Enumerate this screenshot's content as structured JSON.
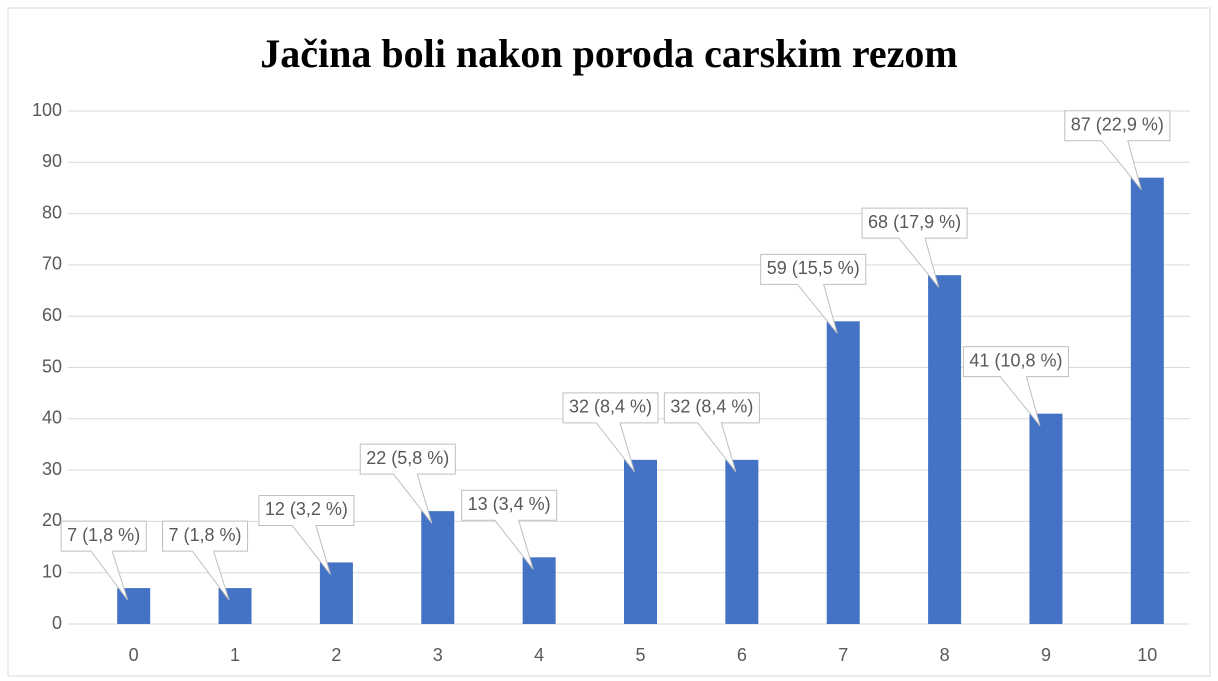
{
  "chart_data": {
    "type": "bar",
    "title": "Jačina boli nakon poroda carskim rezom",
    "categories": [
      "0",
      "1",
      "2",
      "3",
      "4",
      "5",
      "6",
      "7",
      "8",
      "9",
      "10"
    ],
    "values": [
      7,
      7,
      12,
      22,
      13,
      32,
      32,
      59,
      68,
      41,
      87
    ],
    "value_labels": [
      "7 (1,8 %)",
      "7 (1,8 %)",
      "12 (3,2 %)",
      "22 (5,8 %)",
      "13 (3,4 %)",
      "32 (8,4 %)",
      "32 (8,4 %)",
      "59 (15,5 %)",
      "68 (17,9 %)",
      "41 (10,8 %)",
      "87 (22,9 %)"
    ],
    "color": "#4472c4",
    "ylim": [
      0,
      100
    ],
    "yticks": [
      0,
      10,
      20,
      30,
      40,
      50,
      60,
      70,
      80,
      90,
      100
    ],
    "grid": true
  }
}
